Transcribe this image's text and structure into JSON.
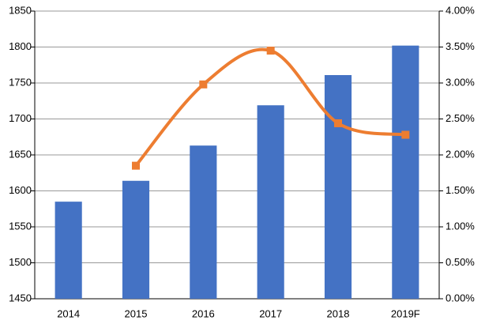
{
  "chart_data": {
    "type": "bar-line",
    "categories": [
      "2014",
      "2015",
      "2016",
      "2017",
      "2018",
      "2019F"
    ],
    "series": [
      {
        "type": "bar",
        "color": "#4472c4",
        "values": [
          1585,
          1614,
          1663,
          1719,
          1761,
          1802
        ]
      },
      {
        "type": "line",
        "axis": "y2",
        "color": "#ed7d31",
        "values": [
          null,
          1.85,
          2.98,
          3.45,
          2.44,
          2.28
        ]
      }
    ],
    "ylim": [
      1450,
      1850
    ],
    "yticks": [
      1450,
      1500,
      1550,
      1600,
      1650,
      1700,
      1750,
      1800,
      1850
    ],
    "y2lim": [
      0,
      4
    ],
    "y2ticks": [
      {
        "value": 0,
        "label": "0.00%"
      },
      {
        "value": 0.5,
        "label": "0.50%"
      },
      {
        "value": 1,
        "label": "1.00%"
      },
      {
        "value": 1.5,
        "label": "1.50%"
      },
      {
        "value": 2,
        "label": "2.00%"
      },
      {
        "value": 2.5,
        "label": "2.50%"
      },
      {
        "value": 3,
        "label": "3.00%"
      },
      {
        "value": 3.5,
        "label": "3.50%"
      },
      {
        "value": 4,
        "label": "4.00%"
      }
    ],
    "grid": true
  }
}
